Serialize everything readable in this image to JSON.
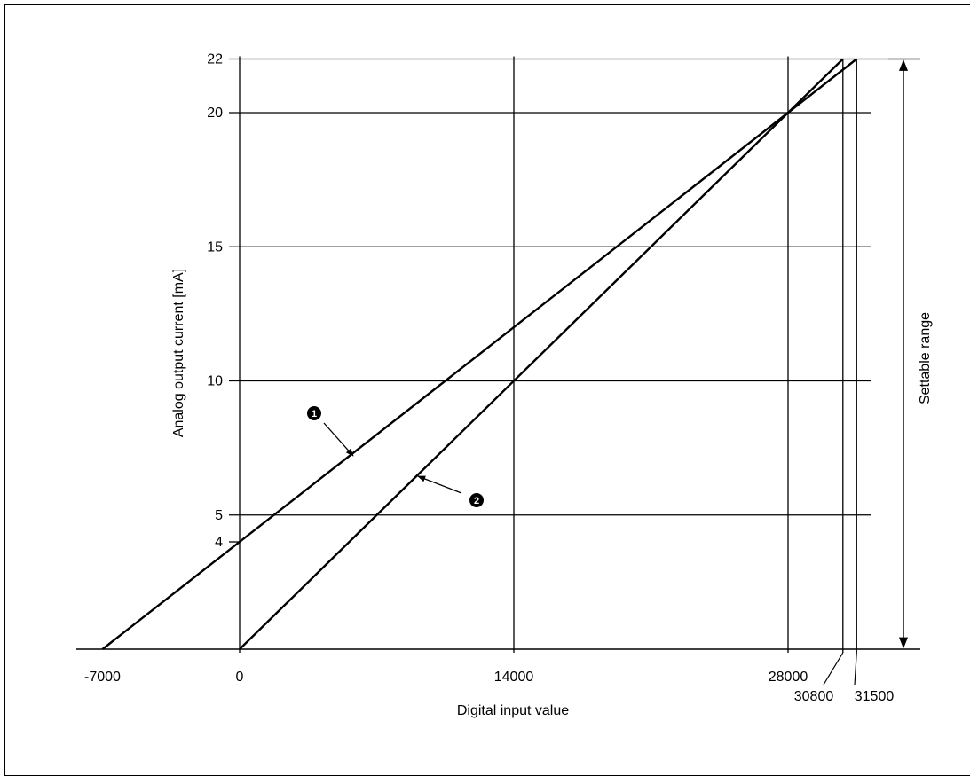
{
  "chart_data": {
    "type": "line",
    "title": "",
    "xlabel": "Digital input value",
    "ylabel": "Analog output current [mA]",
    "xlim": [
      -7000,
      31500
    ],
    "ylim": [
      0,
      22
    ],
    "x_ticks": [
      "-7000",
      "0",
      "14000",
      "28000"
    ],
    "x_extra_ticks": [
      "30800",
      "31500"
    ],
    "y_ticks": [
      "4",
      "5",
      "10",
      "15",
      "20",
      "22"
    ],
    "grid": true,
    "series": [
      {
        "label": "❶",
        "points": [
          [
            -7000,
            0
          ],
          [
            28000,
            20
          ],
          [
            31500,
            22
          ]
        ]
      },
      {
        "label": "❷",
        "points": [
          [
            0,
            0
          ],
          [
            28000,
            20
          ],
          [
            30800,
            22
          ]
        ]
      }
    ],
    "annotations": {
      "settable_range": "Settable range"
    },
    "colors": {
      "line": "#000000",
      "background": "#ffffff"
    }
  }
}
